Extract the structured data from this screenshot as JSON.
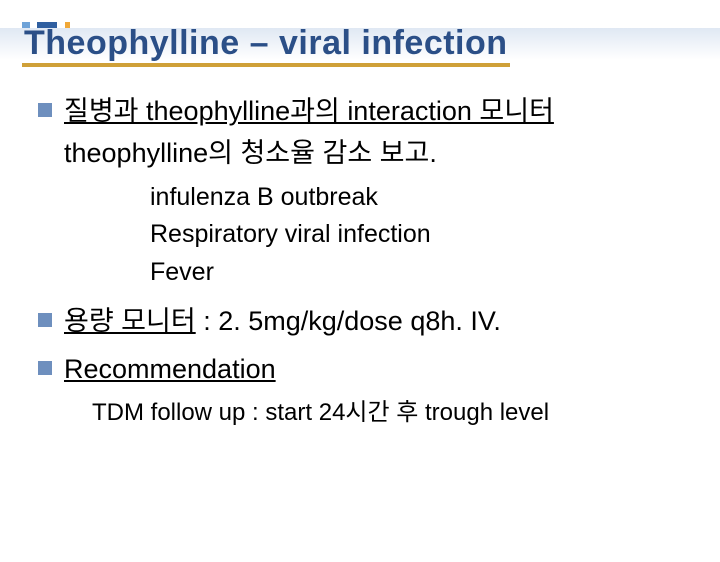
{
  "colors": {
    "decor_bars": [
      "#6fa3d8",
      "#2f5fa0",
      "#f0a838"
    ],
    "decor_widths": [
      8,
      20,
      5
    ],
    "title_bg_from": "#dfe8f3",
    "title_bg_to": "#ffffff",
    "title_text": "#2b4f87",
    "title_underline": "#cfa038",
    "bullet": "#6e8fbe"
  },
  "title": "Theophylline – viral infection",
  "b1_underlined": "질병과 theophylline과의 interaction 모니터",
  "b1_line2": "theophylline의 청소율 감소 보고.",
  "sub_items": [
    "infulenza B outbreak",
    "Respiratory viral infection",
    "Fever"
  ],
  "b2_underlined": "용량 모니터",
  "b2_rest": " :  2. 5mg/kg/dose q8h. IV.",
  "b3_underlined": "Recommendation",
  "tdm": "TDM follow up : start 24시간 후 trough level"
}
